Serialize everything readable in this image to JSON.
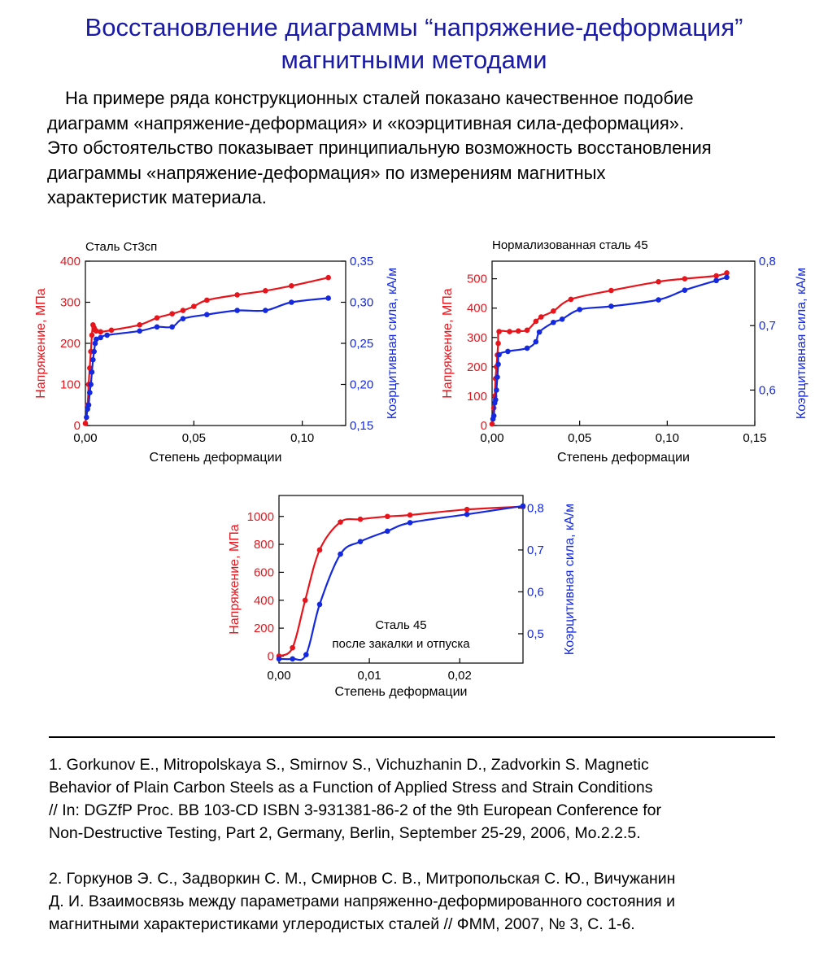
{
  "page": {
    "title_lines": [
      "Восстановление диаграммы “напряжение-деформация”",
      "магнитными методами"
    ],
    "intro_lines": [
      "На примере ряда конструкционных сталей показано качественное подобие",
      "диаграмм «напряжение-деформация» и «коэрцитивная сила-деформация».",
      "Это обстоятельство показывает принципиальную возможность восстановления",
      "диаграммы «напряжение-деформация» по измерениям магнитных",
      "характеристик материала."
    ],
    "references": [
      [
        "1. Gorkunov E., Mitropolskaya S., Smirnov S., Vichuzhanin D., Zadvorkin S. Magnetic",
        "Behavior of Plain Carbon Steels as a Function of Applied Stress and Strain Conditions",
        "// In: DGZfP Proc. BB 103-CD ISBN 3-931381-86-2 of the 9th European Conference for",
        "Non-Destructive Testing, Part 2, Germany, Berlin, September 25-29, 2006, Mo.2.2.5."
      ],
      [
        "2. Горкунов Э. С., Задворкин С. М., Смирнов С. В., Митропольская С. Ю., Вичужанин",
        "Д. И. Взаимосвязь между параметрами напряженно-деформированного состояния и",
        "магнитными характеристиками углеродистых сталей // ФММ, 2007, № 3, С.  1-6."
      ]
    ]
  },
  "colors": {
    "title": "#1a1aa8",
    "stress": "#e8141c",
    "coercive": "#1428e0"
  },
  "chart_data": [
    {
      "type": "line",
      "title": "Сталь Ст3сп",
      "xlabel": "Степень деформации",
      "ylabel": "Напряжение, МПа",
      "y2label": "Коэрцитивная сила, кА/м",
      "xlim": [
        0,
        0.12
      ],
      "ylim": [
        0,
        400
      ],
      "y2lim": [
        0.15,
        0.35
      ],
      "xticks": [
        0,
        0.05,
        0.1
      ],
      "xtick_labels": [
        "0,00",
        "0,05",
        "0,10"
      ],
      "yticks": [
        0,
        100,
        200,
        300,
        400
      ],
      "ytick_labels": [
        "0",
        "100",
        "200",
        "300",
        "400"
      ],
      "y2ticks": [
        0.15,
        0.2,
        0.25,
        0.3,
        0.35
      ],
      "y2tick_labels": [
        "0,15",
        "0,20",
        "0,25",
        "0,30",
        "0,35"
      ],
      "series": [
        {
          "axis": "y",
          "x": [
            0,
            0.001,
            0.0015,
            0.002,
            0.0025,
            0.003,
            0.0035,
            0.004,
            0.0045,
            0.005,
            0.007,
            0.012,
            0.025,
            0.033,
            0.04,
            0.045,
            0.05,
            0.056,
            0.07,
            0.083,
            0.095,
            0.112
          ],
          "y": [
            5,
            50,
            100,
            140,
            180,
            220,
            245,
            238,
            232,
            230,
            228,
            232,
            245,
            262,
            272,
            280,
            290,
            305,
            318,
            328,
            340,
            360
          ]
        },
        {
          "axis": "y2",
          "x": [
            0.0005,
            0.001,
            0.0015,
            0.002,
            0.0025,
            0.003,
            0.0035,
            0.004,
            0.0045,
            0.005,
            0.007,
            0.01,
            0.025,
            0.033,
            0.04,
            0.045,
            0.056,
            0.07,
            0.083,
            0.095,
            0.112
          ],
          "y": [
            0.16,
            0.17,
            0.175,
            0.19,
            0.2,
            0.215,
            0.23,
            0.24,
            0.25,
            0.255,
            0.257,
            0.26,
            0.265,
            0.27,
            0.27,
            0.28,
            0.285,
            0.29,
            0.29,
            0.3,
            0.305
          ]
        }
      ]
    },
    {
      "type": "line",
      "title": "Нормализованная сталь 45",
      "xlabel": "Степень деформации",
      "ylabel": "Напряжение, МПа",
      "y2label": "Коэрцитивная сила, кА/м",
      "xlim": [
        0,
        0.15
      ],
      "ylim": [
        0,
        560
      ],
      "y2lim": [
        0.545,
        0.8
      ],
      "xticks": [
        0,
        0.05,
        0.1,
        0.15
      ],
      "xtick_labels": [
        "0,00",
        "0,05",
        "0,10",
        "0,15"
      ],
      "yticks": [
        0,
        100,
        200,
        300,
        400,
        500
      ],
      "ytick_labels": [
        "0",
        "100",
        "200",
        "300",
        "400",
        "500"
      ],
      "y2ticks": [
        0.6,
        0.7,
        0.8
      ],
      "y2tick_labels": [
        "0,6",
        "0,7",
        "0,8"
      ],
      "series": [
        {
          "axis": "y",
          "x": [
            0,
            0.001,
            0.0015,
            0.002,
            0.0025,
            0.003,
            0.0035,
            0.004,
            0.01,
            0.015,
            0.02,
            0.025,
            0.028,
            0.035,
            0.045,
            0.068,
            0.095,
            0.11,
            0.128,
            0.134
          ],
          "y": [
            5,
            60,
            100,
            160,
            200,
            240,
            280,
            320,
            320,
            322,
            325,
            355,
            370,
            390,
            430,
            460,
            490,
            500,
            510,
            520
          ]
        },
        {
          "axis": "y2",
          "x": [
            0.0005,
            0.001,
            0.0015,
            0.002,
            0.0025,
            0.003,
            0.0035,
            0.004,
            0.009,
            0.02,
            0.025,
            0.027,
            0.035,
            0.04,
            0.05,
            0.068,
            0.095,
            0.11,
            0.128,
            0.134
          ],
          "y": [
            0.555,
            0.56,
            0.58,
            0.585,
            0.6,
            0.62,
            0.64,
            0.655,
            0.66,
            0.665,
            0.675,
            0.69,
            0.705,
            0.71,
            0.725,
            0.73,
            0.74,
            0.755,
            0.77,
            0.775
          ]
        }
      ]
    },
    {
      "type": "line",
      "title": "Сталь 45",
      "subtitle": "после закалки и отпуска",
      "xlabel": "Степень деформации",
      "ylabel": "Напряжение, МПа",
      "y2label": "Коэрцитивная сила, кА/м",
      "xlim": [
        0,
        0.027
      ],
      "ylim": [
        -50,
        1150
      ],
      "y2lim": [
        0.43,
        0.83
      ],
      "xticks": [
        0,
        0.01,
        0.02
      ],
      "xtick_labels": [
        "0,00",
        "0,01",
        "0,02"
      ],
      "yticks": [
        0,
        200,
        400,
        600,
        800,
        1000
      ],
      "ytick_labels": [
        "0",
        "200",
        "400",
        "600",
        "800",
        "1000"
      ],
      "y2ticks": [
        0.5,
        0.6,
        0.7,
        0.8
      ],
      "y2tick_labels": [
        "0,5",
        "0,6",
        "0,7",
        "0,8"
      ],
      "series": [
        {
          "axis": "y",
          "x": [
            0,
            0.0015,
            0.0029,
            0.0045,
            0.0068,
            0.009,
            0.012,
            0.0145,
            0.0208,
            0.027
          ],
          "y": [
            0,
            60,
            400,
            760,
            960,
            980,
            1000,
            1010,
            1050,
            1070
          ]
        },
        {
          "axis": "y2",
          "x": [
            0,
            0.0015,
            0.003,
            0.0045,
            0.0068,
            0.009,
            0.012,
            0.0145,
            0.0208,
            0.027
          ],
          "y": [
            0.44,
            0.44,
            0.45,
            0.57,
            0.69,
            0.72,
            0.745,
            0.765,
            0.785,
            0.805
          ]
        }
      ]
    }
  ]
}
